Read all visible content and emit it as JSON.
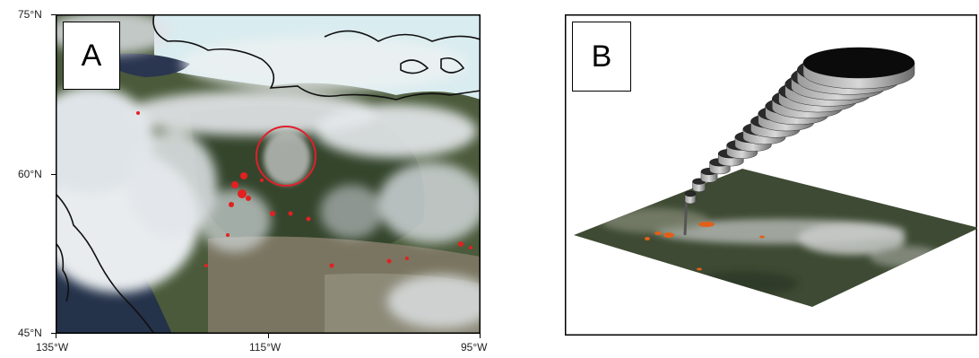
{
  "panel_a": {
    "label": "A",
    "lat_ticks": [
      "75°N",
      "60°N",
      "45°N"
    ],
    "lon_ticks": [
      "135°W",
      "115°W",
      "95°W"
    ],
    "fire_marker_color": "#e32020",
    "plume_circle_color": "#e0202a"
  },
  "panel_b": {
    "label": "B",
    "fire_pixel_color": "#e0601a"
  }
}
